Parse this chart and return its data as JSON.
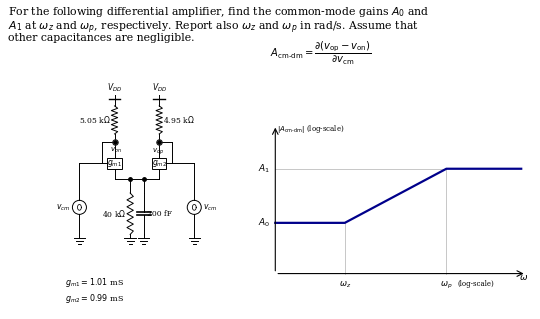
{
  "background": "#ffffff",
  "plot_color": "#00008B",
  "line_color": "#000000",
  "grid_color": "#b0b0b0",
  "text_color": "#000000",
  "title_line1": "For the following differential amplifier, find the common-mode gains $A_0$ and",
  "title_line2": "$A_1$ at $\\omega_z$ and $\\omega_p$, respectively. Report also $\\omega_z$ and $\\omega_p$ in rad/s. Assume that",
  "title_line3": "other capacitances are negligible.",
  "formula_left": "$A_{\\mathrm{cm\\text{-}dm}} = $",
  "formula_num": "$\\partial(v_{\\mathrm{op}} - v_{\\mathrm{on}})$",
  "formula_den": "$\\partial v_{\\mathrm{cm}}$",
  "ylabel_text": "$|A_{\\mathrm{cm\\text{-}dm}}|$ (log-scale)",
  "xlabel_annot": "(log-scale)",
  "omega_sym": "$\\omega$",
  "A0_sym": "$A_0$",
  "A1_sym": "$A_1$",
  "wz_sym": "$\\omega_z$",
  "wp_sym": "$\\omega_p$",
  "r1_label": "5.05 k$\\Omega$",
  "r2_label": "4.95 k$\\Omega$",
  "r3_label": "40 k$\\Omega$",
  "cap_label": "200 fF",
  "vdd_label": "$V_{DD}$",
  "von_label": "$v_{on}$",
  "vop_label": "$v_{op}$",
  "vcm_label": "$v_{cm}$",
  "gm1_label": "$g_{m1}$",
  "gm2_label": "$g_{m2}$",
  "gm1_val": "$g_{m1} = 1.01$ mS",
  "gm2_val": "$g_{m2} = 0.99$ mS",
  "lw": 0.7,
  "fontsize_small": 5.5,
  "fontsize_mid": 6.5,
  "fontsize_title": 7.8
}
